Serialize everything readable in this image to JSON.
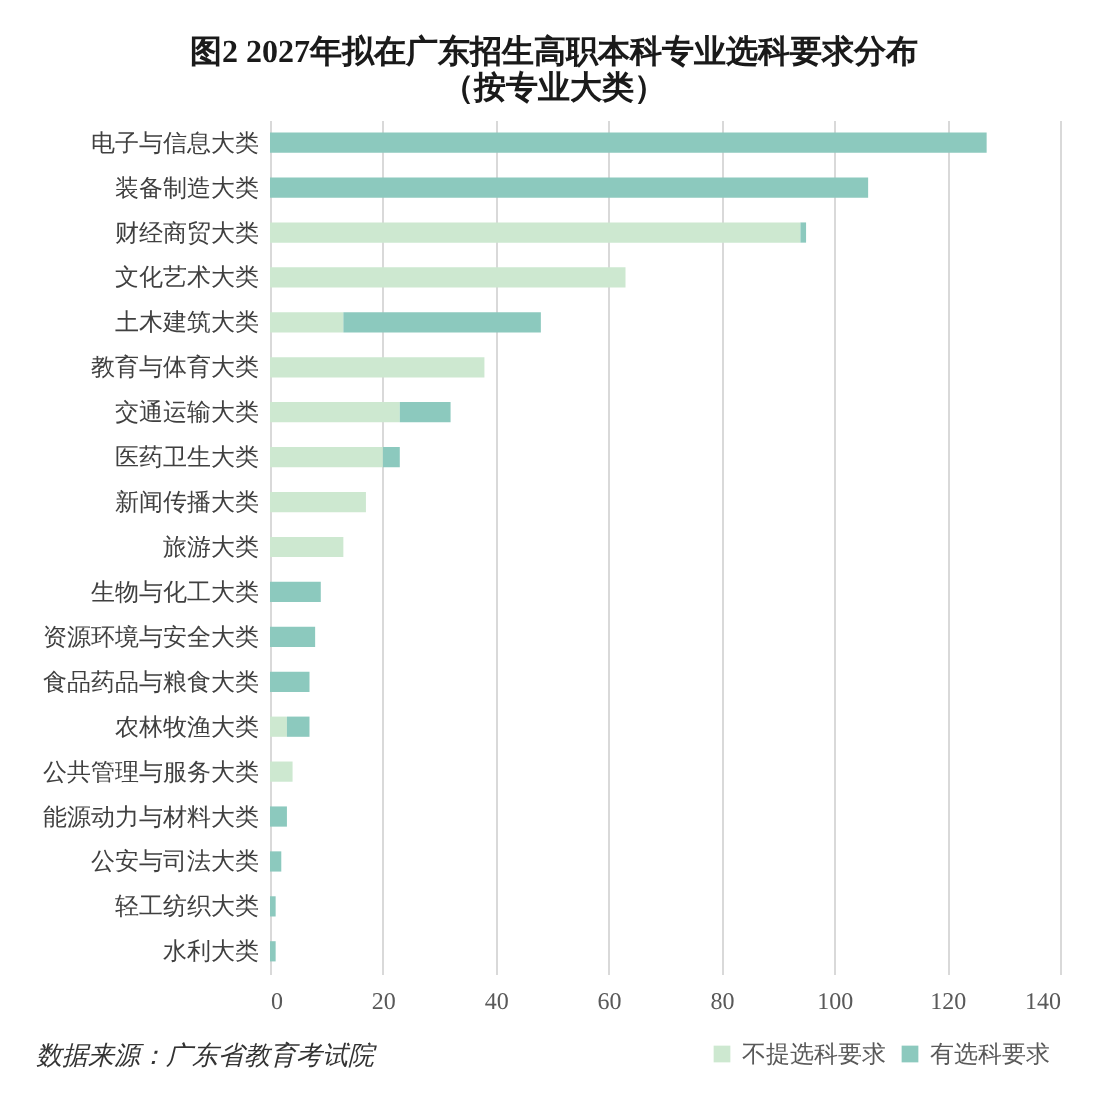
{
  "chart_data": {
    "type": "bar",
    "orientation": "horizontal",
    "stacked": true,
    "title": "图2 2027年拟在广东招生高职本科专业选科要求分布",
    "subtitle": "（按专业大类）",
    "categories": [
      "电子与信息大类",
      "装备制造大类",
      "财经商贸大类",
      "文化艺术大类",
      "土木建筑大类",
      "教育与体育大类",
      "交通运输大类",
      "医药卫生大类",
      "新闻传播大类",
      "旅游大类",
      "生物与化工大类",
      "资源环境与安全大类",
      "食品药品与粮食大类",
      "农林牧渔大类",
      "公共管理与服务大类",
      "能源动力与材料大类",
      "公安与司法大类",
      "轻工纺织大类",
      "水利大类"
    ],
    "series": [
      {
        "name": "不提选科要求",
        "color": "#cde8d0",
        "values": [
          null,
          null,
          94,
          63,
          13,
          38,
          23,
          20,
          17,
          13,
          null,
          null,
          null,
          3,
          4,
          null,
          null,
          null,
          null
        ]
      },
      {
        "name": "有选科要求",
        "color": "#8cc9be",
        "values": [
          127,
          106,
          1,
          null,
          35,
          null,
          9,
          3,
          null,
          null,
          9,
          8,
          7,
          4,
          null,
          3,
          2,
          1,
          1
        ]
      }
    ],
    "xlim": [
      0,
      140
    ],
    "xticks": [
      0,
      20,
      40,
      60,
      80,
      100,
      120,
      140
    ],
    "grid": "x",
    "legend": "bottom right",
    "annotations": [
      "数据来源：广东省教育考试院"
    ]
  }
}
